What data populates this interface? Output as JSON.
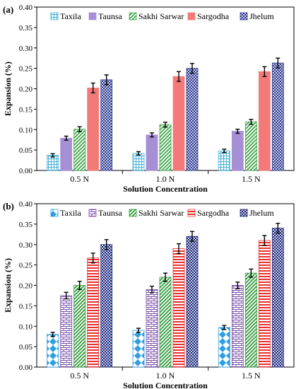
{
  "chart_data": [
    {
      "panel_label": "(a)",
      "type": "bar",
      "xlabel": "Solution Concentration",
      "ylabel": "Expansion (%)",
      "ylim": [
        0,
        0.4
      ],
      "ytick_step": 0.05,
      "yticks": [
        "0.00",
        "0.05",
        "0.10",
        "0.15",
        "0.20",
        "0.25",
        "0.30",
        "0.35",
        "0.40"
      ],
      "grid": false,
      "legend_position": "top",
      "categories": [
        "0.5 N",
        "1.0 N",
        "1.5 N"
      ],
      "series": [
        {
          "name": "Taxila",
          "values": [
            0.037,
            0.042,
            0.048
          ],
          "errors": [
            0.004,
            0.004,
            0.004
          ],
          "color": "#4fb3d9",
          "pattern": "grid"
        },
        {
          "name": "Taunsa",
          "values": [
            0.079,
            0.087,
            0.096
          ],
          "errors": [
            0.005,
            0.005,
            0.005
          ],
          "color": "#a78fd6",
          "pattern": "solid"
        },
        {
          "name": "Sakhi Sarwar",
          "values": [
            0.101,
            0.112,
            0.119
          ],
          "errors": [
            0.006,
            0.006,
            0.006
          ],
          "color": "#3fa64a",
          "pattern": "diagonal"
        },
        {
          "name": "Sargodha",
          "values": [
            0.202,
            0.23,
            0.242
          ],
          "errors": [
            0.012,
            0.012,
            0.012
          ],
          "color": "#f47a7a",
          "pattern": "solid"
        },
        {
          "name": "Jhelum",
          "values": [
            0.222,
            0.25,
            0.263
          ],
          "errors": [
            0.012,
            0.012,
            0.012
          ],
          "color": "#2e3a8c",
          "pattern": "checker"
        }
      ]
    },
    {
      "panel_label": "(b)",
      "type": "bar",
      "xlabel": "Solution Concentration",
      "ylabel": "Expansion (%)",
      "ylim": [
        0,
        0.4
      ],
      "ytick_step": 0.05,
      "yticks": [
        "0.00",
        "0.05",
        "0.10",
        "0.15",
        "0.20",
        "0.25",
        "0.30",
        "0.35",
        "0.40"
      ],
      "grid": false,
      "legend_position": "top",
      "categories": [
        "0.5 N",
        "1.0 N",
        "1.5 N"
      ],
      "series": [
        {
          "name": "Taxila",
          "values": [
            0.08,
            0.09,
            0.097
          ],
          "errors": [
            0.005,
            0.005,
            0.005
          ],
          "color": "#2e9fe0",
          "pattern": "diamond"
        },
        {
          "name": "Taunsa",
          "values": [
            0.175,
            0.19,
            0.2
          ],
          "errors": [
            0.008,
            0.008,
            0.008
          ],
          "color": "#7b52a8",
          "pattern": "brick"
        },
        {
          "name": "Sakhi Sarwar",
          "values": [
            0.2,
            0.22,
            0.23
          ],
          "errors": [
            0.01,
            0.01,
            0.01
          ],
          "color": "#2f9a3a",
          "pattern": "diagonal"
        },
        {
          "name": "Sargodha",
          "values": [
            0.267,
            0.29,
            0.31
          ],
          "errors": [
            0.012,
            0.012,
            0.012
          ],
          "color": "#e8312f",
          "pattern": "hstripe"
        },
        {
          "name": "Jhelum",
          "values": [
            0.3,
            0.32,
            0.34
          ],
          "errors": [
            0.012,
            0.012,
            0.012
          ],
          "color": "#1f2a78",
          "pattern": "checker"
        }
      ]
    }
  ]
}
